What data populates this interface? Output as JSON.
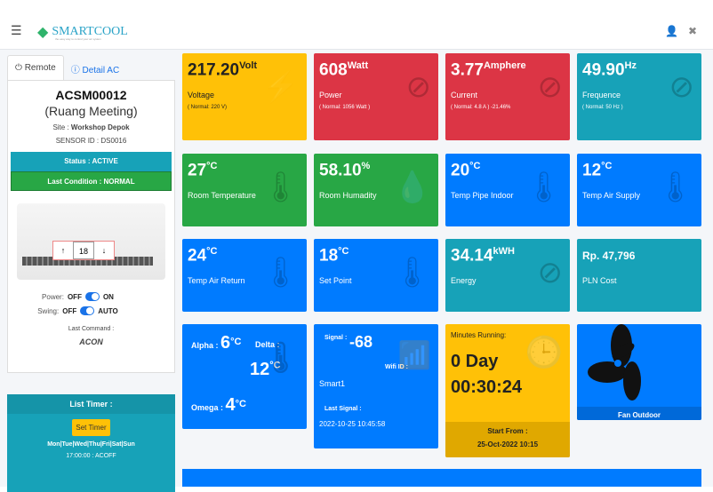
{
  "header": {
    "logo": "SMARTCOOL",
    "logo_tagline": "the easy way to control your air system",
    "menu_icon": "hamburger-icon",
    "user_icon": "user-icon",
    "expand_icon": "expand-icon"
  },
  "sidebar": {
    "tabs": [
      {
        "label": "Remote"
      },
      {
        "label": "Detail AC"
      }
    ],
    "device_id": "ACSM00012",
    "room": "(Ruang Meeting)",
    "site_label": "Site :",
    "site": "Workshop Depok",
    "sensor": "SENSOR ID : DS0016",
    "status": "Status : ACTIVE",
    "condition": "Last Condition : NORMAL",
    "temp_up": "↑",
    "temp": "18",
    "temp_down": "↓",
    "power_label": "Power:",
    "power_off": "OFF",
    "power_on": "ON",
    "power_state": true,
    "swing_label": "Swing:",
    "swing_off": "OFF",
    "swing_on": "AUTO",
    "swing_state": true,
    "last_command_label": "Last Command :",
    "last_command": "ACON",
    "timer_title": "List Timer :",
    "set_timer": "Set Timer",
    "days": "Mon|Tue|Wed|Thu|Fri|Sat|Sun",
    "timer_entry": "17:00:00 : ACOFF"
  },
  "tiles": {
    "voltage": {
      "value": "217.20",
      "unit": "Volt",
      "label": "Voltage",
      "note": "( Normal: 220 V)"
    },
    "power": {
      "value": "608",
      "unit": "Watt",
      "label": "Power",
      "note": "( Normal: 1056 Watt )"
    },
    "current": {
      "value": "3.77",
      "unit": "Amphere",
      "label": "Current",
      "note": "( Normal: 4.8 A ) -21.46%"
    },
    "frequence": {
      "value": "49.90",
      "unit": "Hz",
      "label": "Frequence",
      "note": "( Normal: 50 Hz )"
    },
    "room_temp": {
      "value": "27",
      "unit": "°C",
      "label": "Room Temperature"
    },
    "room_hum": {
      "value": "58.10",
      "unit": "%",
      "label": "Room Humadity"
    },
    "pipe": {
      "value": "20",
      "unit": "°C",
      "label": "Temp Pipe Indoor"
    },
    "supply": {
      "value": "12",
      "unit": "°C",
      "label": "Temp Air Supply"
    },
    "return": {
      "value": "24",
      "unit": "°C",
      "label": "Temp Air Return"
    },
    "setpoint": {
      "value": "18",
      "unit": "°C",
      "label": "Set Point"
    },
    "energy": {
      "value": "34.14",
      "unit": "kWH",
      "label": "Energy"
    },
    "cost": {
      "value": "Rp. 47,796",
      "label": "PLN Cost"
    },
    "delta": {
      "alpha_label": "Alpha :",
      "alpha": "6",
      "delta_label": "Delta :",
      "delta": "12",
      "omega_label": "Omega :",
      "omega": "4",
      "unit": "°C"
    },
    "wifi": {
      "signal_label": "Signal :",
      "signal": "-68",
      "wifi_label": "Wifi ID :",
      "wifi_id": "Smart1",
      "last_label": "Last Signal :",
      "last": "2022-10-25 10:45:58"
    },
    "running": {
      "label": "Minutes Running:",
      "days": "0 Day",
      "time": "00:30:24",
      "start_label": "Start From :",
      "start": "25-Oct-2022 10:15"
    },
    "fan": {
      "label": "Fan Outdoor"
    }
  }
}
